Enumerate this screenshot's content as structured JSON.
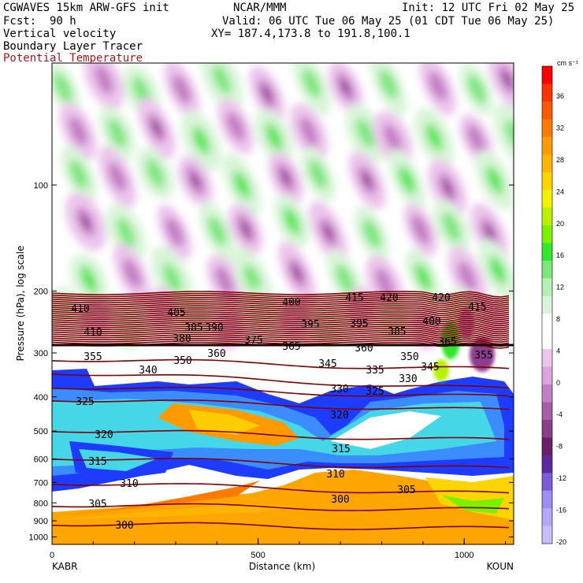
{
  "header": {
    "model": "CGWAVES 15km ARW-GFS init",
    "org": "NCAR/MMM",
    "init": "Init: 12 UTC Fri 02 May 25",
    "fcst": "Fcst:  90 h",
    "valid": "Valid: 06 UTC Tue 06 May 25 (01 CDT Tue 06 May 25)",
    "field1": "Vertical velocity",
    "field2": "Boundary Layer Tracer",
    "field3": "Potential Temperature",
    "xy": "XY= 187.4,173.8 to 191.8,100.1"
  },
  "colorbar": {
    "unit": "cm s⁻¹",
    "ticks": [
      "36",
      "32",
      "28",
      "24",
      "20",
      "16",
      "12",
      "8",
      "4",
      "0",
      "-4",
      "-8",
      "-12",
      "-16",
      "-20"
    ],
    "colors": [
      "#ff0000",
      "#ff3300",
      "#ff5a00",
      "#ff7a00",
      "#ff9b00",
      "#ffb400",
      "#ffd500",
      "#f2f200",
      "#b8f000",
      "#7df000",
      "#33e62e",
      "#7fe67f",
      "#b5efb5",
      "#d9f5d9",
      "#ffffff",
      "#ffffff",
      "#ecc5ec",
      "#dca3dc",
      "#c47fc4",
      "#a95ea9",
      "#8c3d8c",
      "#6a1f6a",
      "#5b2a9c",
      "#7a5cd6",
      "#9c8df0",
      "#b5a8f5",
      "#c7beff"
    ]
  },
  "chart_data": {
    "type": "heatmap",
    "title": "Vertical velocity / Boundary Layer Tracer / Potential Temperature",
    "xlabel": "Distance (km)",
    "ylabel": "Pressure (hPa), log scale",
    "xlim": [
      0,
      1120
    ],
    "ylim": [
      1050,
      45
    ],
    "y_scale": "log",
    "x_ticks": [
      0,
      500,
      1000
    ],
    "x_tick_labels": [
      "0",
      "500",
      "1000"
    ],
    "y_ticks": [
      100,
      200,
      300,
      400,
      500,
      600,
      700,
      800,
      900,
      1000
    ],
    "y_tick_labels": [
      "100",
      "200",
      "300",
      "400",
      "500",
      "600",
      "700",
      "800",
      "900",
      "1000"
    ],
    "left_station": "KABR",
    "right_station": "KOUN",
    "theta_contour_labels": [
      "410",
      "405",
      "400",
      "415",
      "420",
      "420",
      "415",
      "410",
      "385",
      "390",
      "395",
      "395",
      "385",
      "400",
      "380",
      "375",
      "365",
      "360",
      "365",
      "355",
      "350",
      "360",
      "345",
      "350",
      "355",
      "340",
      "345",
      "335",
      "330",
      "330",
      "325",
      "325",
      "320",
      "320",
      "315",
      "315",
      "310",
      "310",
      "305",
      "305",
      "300",
      "300"
    ],
    "theta_levels_K": [
      300,
      305,
      310,
      315,
      320,
      325,
      330,
      335,
      340,
      345,
      350,
      355,
      360,
      365,
      370,
      375,
      380,
      385,
      390,
      395,
      400,
      405,
      410,
      415,
      420
    ]
  }
}
